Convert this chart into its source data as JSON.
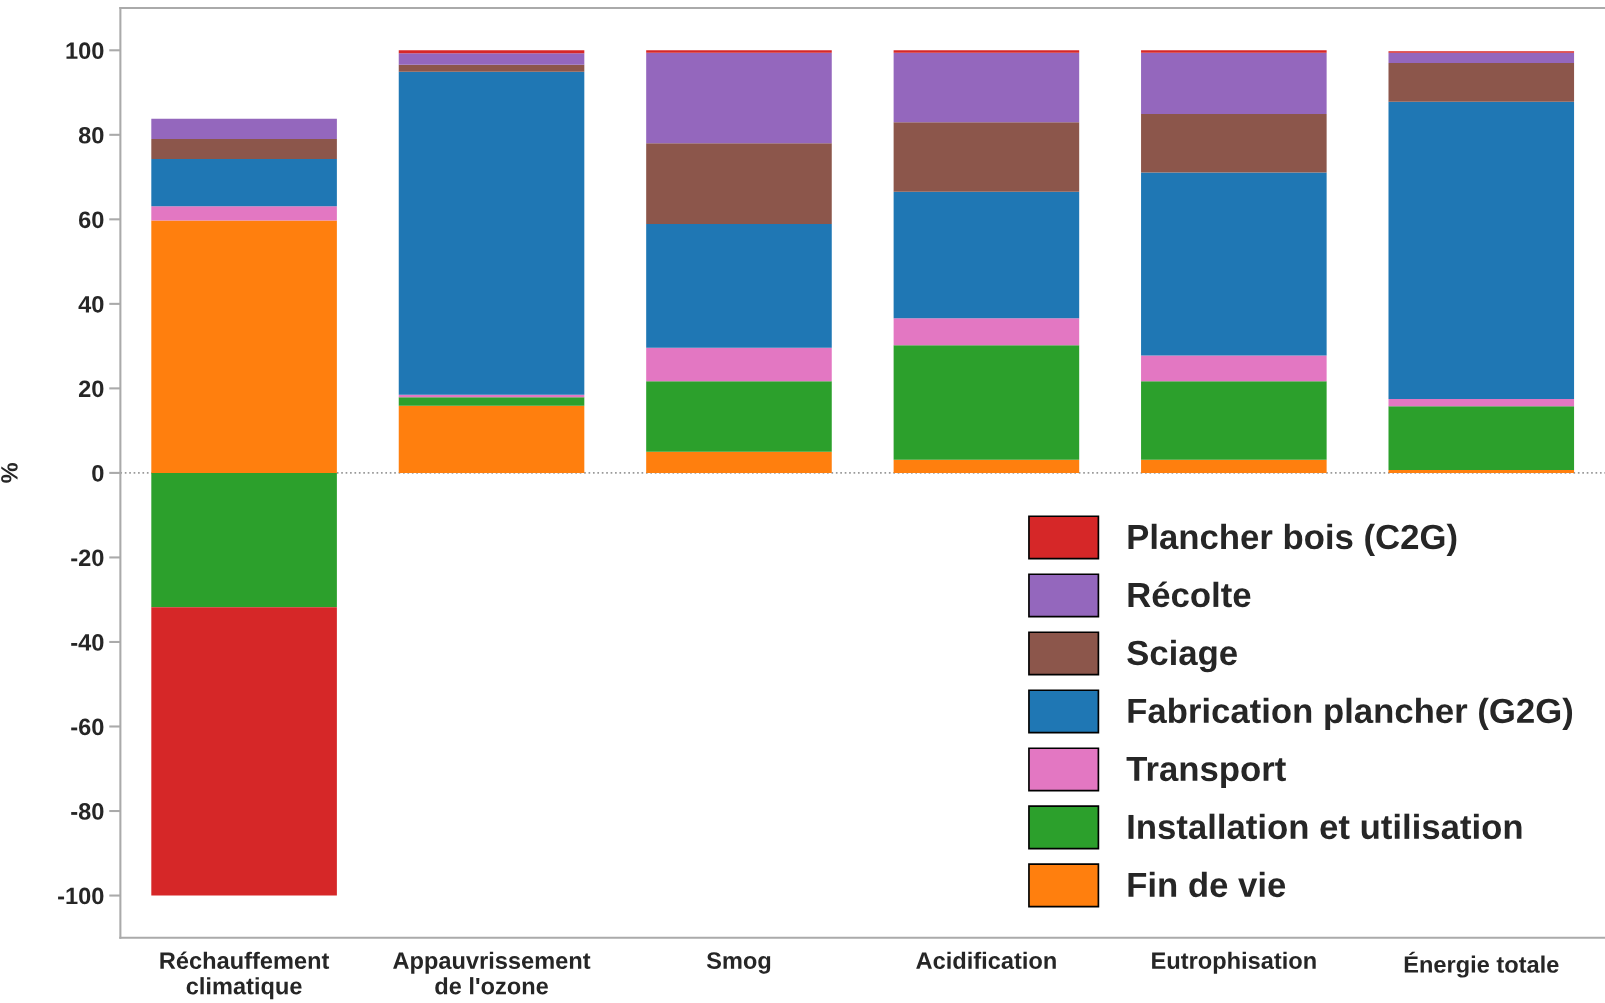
{
  "chart_data": {
    "type": "bar",
    "stacked": true,
    "ylabel": "%",
    "categories": [
      "Réchauffement\nclimatique",
      "Appauvrissement\nde l'ozone",
      "Smog",
      "Acidification",
      "Eutrophisation",
      "Énergie totale"
    ],
    "ylim": [
      -110,
      110
    ],
    "yticks": [
      -100,
      -80,
      -60,
      -40,
      -20,
      0,
      20,
      40,
      60,
      80,
      100
    ],
    "ref_lines": [
      {
        "axis": "y",
        "value": 0,
        "color": "#999999",
        "line_style": "dotted"
      }
    ],
    "legend": "bottom right",
    "grid": false,
    "series": [
      {
        "name": "Fin de vie",
        "color": "#ff7f0e",
        "values": [
          59.7,
          15.9,
          5.0,
          3.1,
          3.1,
          0.7
        ]
      },
      {
        "name": "Installation et utilisation",
        "color": "#2ca02c",
        "values": [
          -31.8,
          2.0,
          16.7,
          27.1,
          18.6,
          15.1
        ]
      },
      {
        "name": "Transport",
        "color": "#e377c2",
        "values": [
          3.4,
          0.6,
          7.9,
          6.4,
          6.1,
          1.7
        ]
      },
      {
        "name": "Fabrication plancher (G2G)",
        "color": "#1f77b4",
        "values": [
          11.2,
          76.4,
          29.3,
          29.9,
          43.3,
          70.3
        ]
      },
      {
        "name": "Sciage",
        "color": "#8c564b",
        "values": [
          4.7,
          1.7,
          19.1,
          16.5,
          13.8,
          9.2
        ]
      },
      {
        "name": "Récolte",
        "color": "#9467bd",
        "values": [
          4.8,
          2.7,
          21.4,
          16.4,
          14.5,
          2.4
        ]
      },
      {
        "name": "Plancher bois (C2G)",
        "color": "#d62728",
        "values": [
          -68.2,
          0.7,
          0.6,
          0.6,
          0.6,
          0.4
        ]
      }
    ]
  }
}
